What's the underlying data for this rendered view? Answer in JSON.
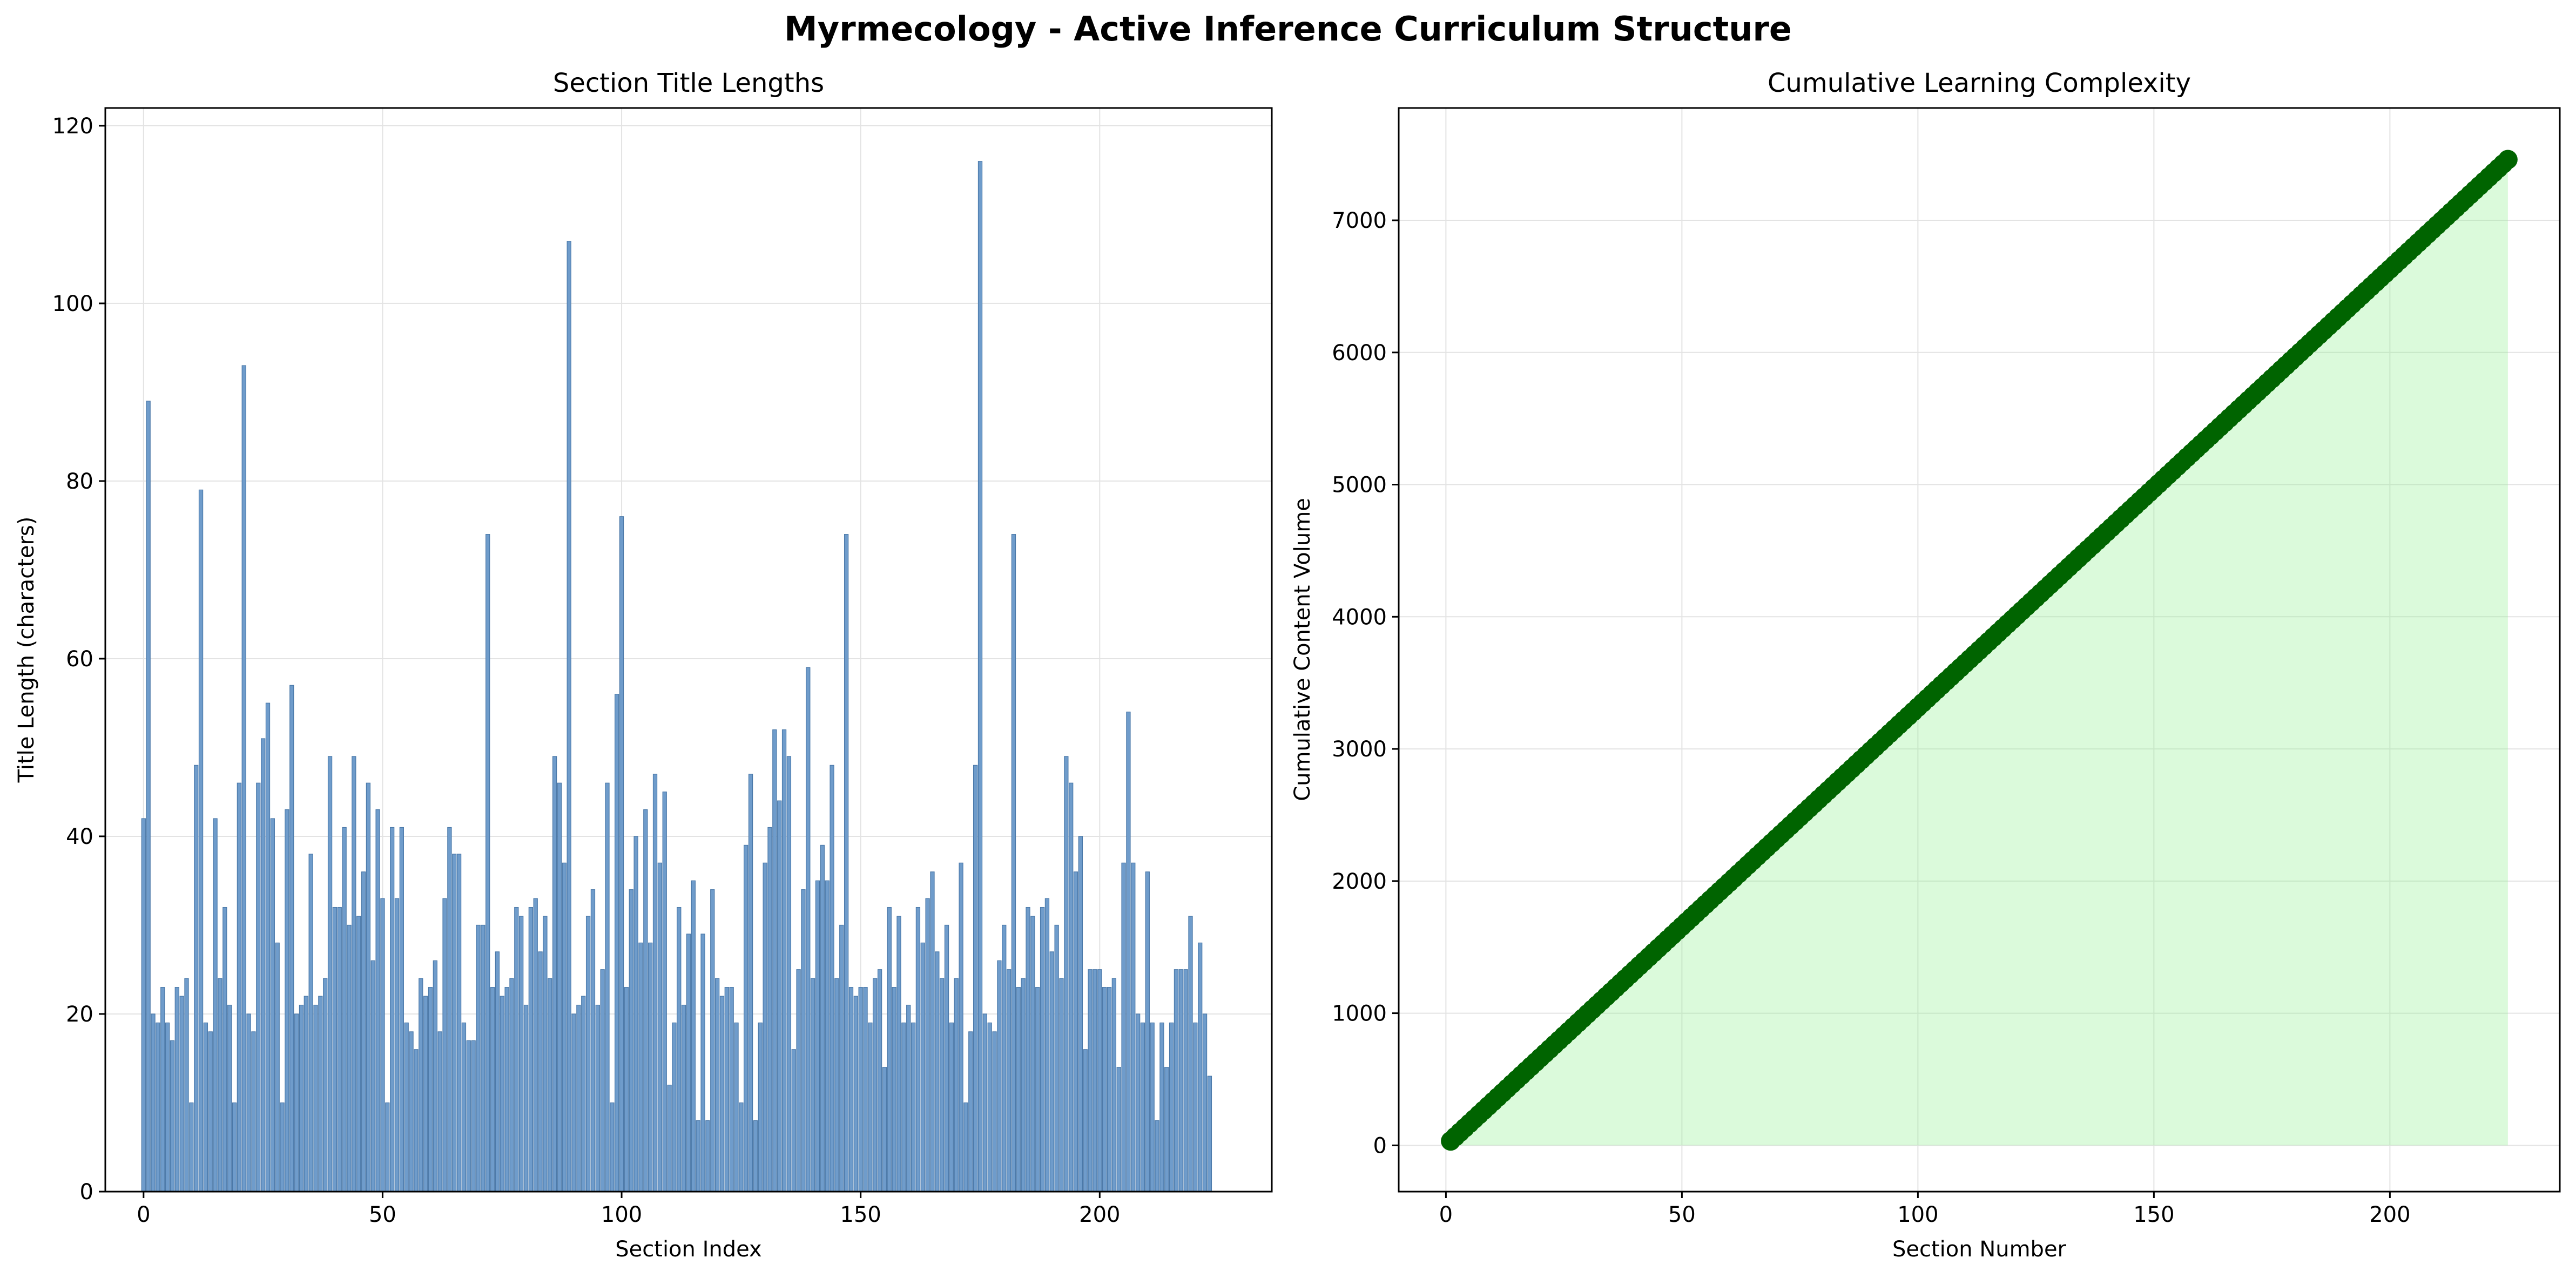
{
  "figure": {
    "suptitle": "Myrmecology - Active Inference Curriculum Structure"
  },
  "chart_data": [
    {
      "type": "bar",
      "title": "Section Title Lengths",
      "xlabel": "Section Index",
      "ylabel": "Title Length (characters)",
      "xlim": [
        -8,
        236
      ],
      "ylim": [
        0,
        122
      ],
      "xticks": [
        0,
        50,
        100,
        150,
        200
      ],
      "yticks": [
        0,
        20,
        40,
        60,
        80,
        100,
        120
      ],
      "grid": true,
      "bar_color": "#6f9ccb",
      "bar_edge_color": "#4a78a8",
      "x": "0..224",
      "values": [
        42,
        89,
        20,
        19,
        23,
        19,
        17,
        23,
        22,
        24,
        10,
        48,
        79,
        19,
        18,
        42,
        24,
        32,
        21,
        10,
        46,
        93,
        20,
        18,
        46,
        51,
        55,
        42,
        28,
        10,
        43,
        57,
        20,
        21,
        22,
        38,
        21,
        22,
        24,
        49,
        32,
        32,
        41,
        30,
        49,
        31,
        36,
        46,
        26,
        43,
        33,
        10,
        41,
        33,
        41,
        19,
        18,
        16,
        24,
        22,
        23,
        26,
        18,
        33,
        41,
        38,
        38,
        19,
        17,
        17,
        30,
        30,
        74,
        23,
        27,
        22,
        23,
        24,
        32,
        31,
        21,
        32,
        33,
        27,
        31,
        24,
        49,
        46,
        37,
        107,
        20,
        21,
        22,
        31,
        34,
        21,
        25,
        46,
        10,
        56,
        76,
        23,
        34,
        40,
        28,
        43,
        28,
        47,
        37,
        45,
        12,
        19,
        32,
        21,
        29,
        35,
        8,
        29,
        8,
        34,
        24,
        22,
        23,
        23,
        19,
        10,
        39,
        47,
        8,
        19,
        37,
        41,
        52,
        44,
        52,
        49,
        16,
        25,
        34,
        59,
        24,
        35,
        39,
        35,
        48,
        24,
        30,
        74,
        23,
        22,
        23,
        23,
        19,
        24,
        25,
        14,
        32,
        23,
        31,
        19,
        21,
        19,
        32,
        28,
        33,
        36,
        27,
        24,
        30,
        19,
        24,
        37,
        10,
        18,
        48,
        116,
        20,
        19,
        18,
        26,
        30,
        25,
        74,
        23,
        24,
        32,
        31,
        23,
        32,
        33,
        27,
        30,
        24,
        49,
        46,
        36,
        40,
        16,
        25,
        25,
        25,
        23,
        23,
        24,
        14,
        37,
        54,
        37,
        20,
        19,
        36,
        19,
        8,
        19,
        14,
        19,
        25,
        25,
        25,
        31,
        19,
        28,
        20,
        13
      ]
    },
    {
      "type": "scatter",
      "title": "Cumulative Learning Complexity",
      "xlabel": "Section Number",
      "ylabel": "Cumulative Content Volume",
      "xlim": [
        -10,
        236
      ],
      "ylim": [
        -350,
        7850
      ],
      "xticks": [
        0,
        50,
        100,
        150,
        200
      ],
      "yticks": [
        0,
        1000,
        2000,
        3000,
        4000,
        5000,
        6000,
        7000
      ],
      "grid": true,
      "marker_color": "#006400",
      "fill_color": "#90ee90",
      "x_range": [
        1,
        225
      ],
      "y_start": 33,
      "y_end": 7460,
      "fill_under": true
    }
  ]
}
